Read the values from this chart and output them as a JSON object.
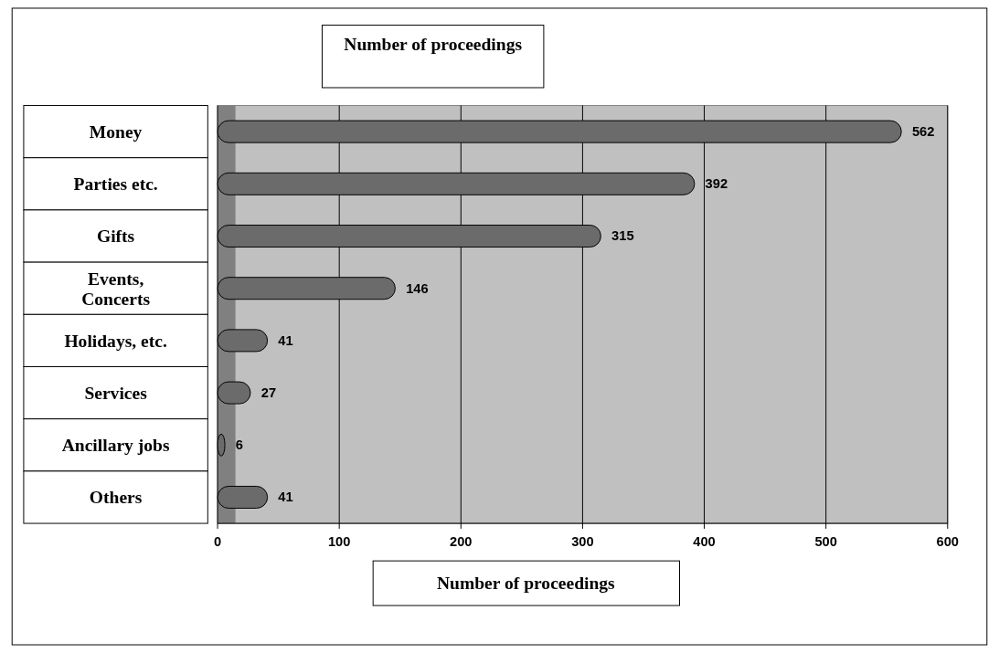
{
  "chart_data": {
    "type": "bar",
    "orientation": "horizontal",
    "title": "Number of proceedings",
    "xlabel": "Number of proceedings",
    "categories": [
      "Money",
      "Parties etc.",
      "Gifts",
      "Events, Concerts",
      "Holidays, etc.",
      "Services",
      "Ancillary jobs",
      "Others"
    ],
    "values": [
      562,
      392,
      315,
      146,
      41,
      27,
      6,
      41
    ],
    "color": "#6b6b6b",
    "xlim": [
      0,
      600
    ],
    "xticks": [
      0,
      100,
      200,
      300,
      400,
      500,
      600
    ],
    "grid": "x",
    "data_labels": true
  }
}
